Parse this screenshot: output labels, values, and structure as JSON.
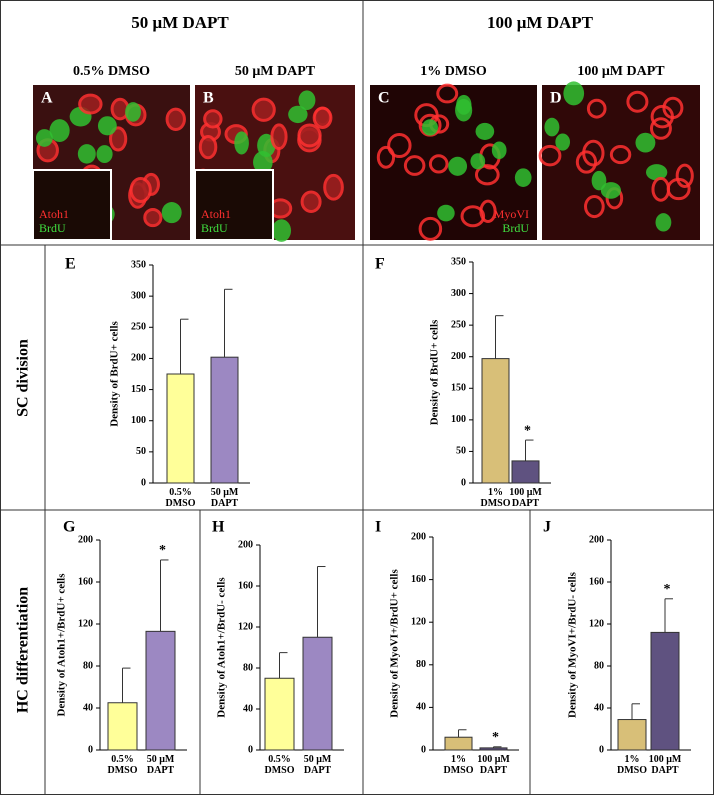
{
  "headers": [
    "50 μM DAPT",
    "100 μM DAPT"
  ],
  "row_labels": [
    "SC division",
    "HC differentiation"
  ],
  "images": [
    {
      "panel": "A",
      "title": "0.5% DMSO",
      "labels": [
        "Atoh1",
        "BrdU"
      ]
    },
    {
      "panel": "B",
      "title": "50 μM DAPT",
      "labels": [
        "Atoh1",
        "BrdU"
      ]
    },
    {
      "panel": "C",
      "title": "1% DMSO",
      "labels": [
        "MyoVI",
        "BrdU"
      ]
    },
    {
      "panel": "D",
      "title": "100 μM DAPT",
      "labels": []
    }
  ],
  "chart_data": [
    {
      "type": "bar",
      "panel": "E",
      "y_label": "Density of BrdU+ cells",
      "categories": [
        "0.5% DMSO",
        "50 μM DAPT"
      ],
      "values": [
        175,
        202
      ],
      "errors": [
        88,
        109
      ],
      "colors": [
        "#ffff99",
        "#9c88c2"
      ],
      "significance_labels": [
        null,
        null
      ],
      "ylim": [
        0,
        350
      ],
      "yticks": [
        0,
        50,
        100,
        150,
        200,
        250,
        300,
        350
      ]
    },
    {
      "type": "bar",
      "panel": "F",
      "y_label": "Density of BrdU+ cells",
      "categories": [
        "1% DMSO",
        "100 μM DAPT"
      ],
      "values": [
        197,
        35
      ],
      "errors": [
        68,
        33
      ],
      "colors": [
        "#d8bf78",
        "#5f5280"
      ],
      "significance_labels": [
        null,
        "*"
      ],
      "ylim": [
        0,
        350
      ],
      "yticks": [
        0,
        50,
        100,
        150,
        200,
        250,
        300,
        350
      ]
    },
    {
      "type": "bar",
      "panel": "G",
      "y_label": "Density of Atoh1+/BrdU+ cells",
      "categories": [
        "0.5% DMSO",
        "50 μM DAPT"
      ],
      "values": [
        45,
        113
      ],
      "errors": [
        33,
        68
      ],
      "colors": [
        "#ffff99",
        "#9c88c2"
      ],
      "significance_labels": [
        null,
        "*"
      ],
      "ylim": [
        0,
        200
      ],
      "yticks": [
        0,
        40,
        80,
        120,
        160,
        200
      ]
    },
    {
      "type": "bar",
      "panel": "H",
      "y_label": "Density of Atoh1+/BrdU- cells",
      "categories": [
        "0.5% DMSO",
        "50 μM DAPT"
      ],
      "values": [
        70,
        110
      ],
      "errors": [
        25,
        69
      ],
      "colors": [
        "#ffff99",
        "#9c88c2"
      ],
      "significance_labels": [
        null,
        null
      ],
      "ylim": [
        0,
        200
      ],
      "yticks": [
        0,
        40,
        80,
        120,
        160,
        200
      ]
    },
    {
      "type": "bar",
      "panel": "I",
      "y_label": "Density of MyoVI+/BrdU+ cells",
      "categories": [
        "1% DMSO",
        "100 μM DAPT"
      ],
      "values": [
        12,
        2
      ],
      "errors": [
        7,
        1
      ],
      "colors": [
        "#d8bf78",
        "#5f5280"
      ],
      "significance_labels": [
        null,
        "*"
      ],
      "ylim": [
        0,
        200
      ],
      "yticks": [
        0,
        40,
        80,
        120,
        160,
        200
      ]
    },
    {
      "type": "bar",
      "panel": "J",
      "y_label": "Density of MyoVI+/BrdU- cells",
      "categories": [
        "1% DMSO",
        "100 μM DAPT"
      ],
      "values": [
        29,
        112
      ],
      "errors": [
        15,
        32
      ],
      "colors": [
        "#d8bf78",
        "#5f5280"
      ],
      "significance_labels": [
        null,
        "*"
      ],
      "ylim": [
        0,
        200
      ],
      "yticks": [
        0,
        40,
        80,
        120,
        160,
        200
      ]
    }
  ]
}
